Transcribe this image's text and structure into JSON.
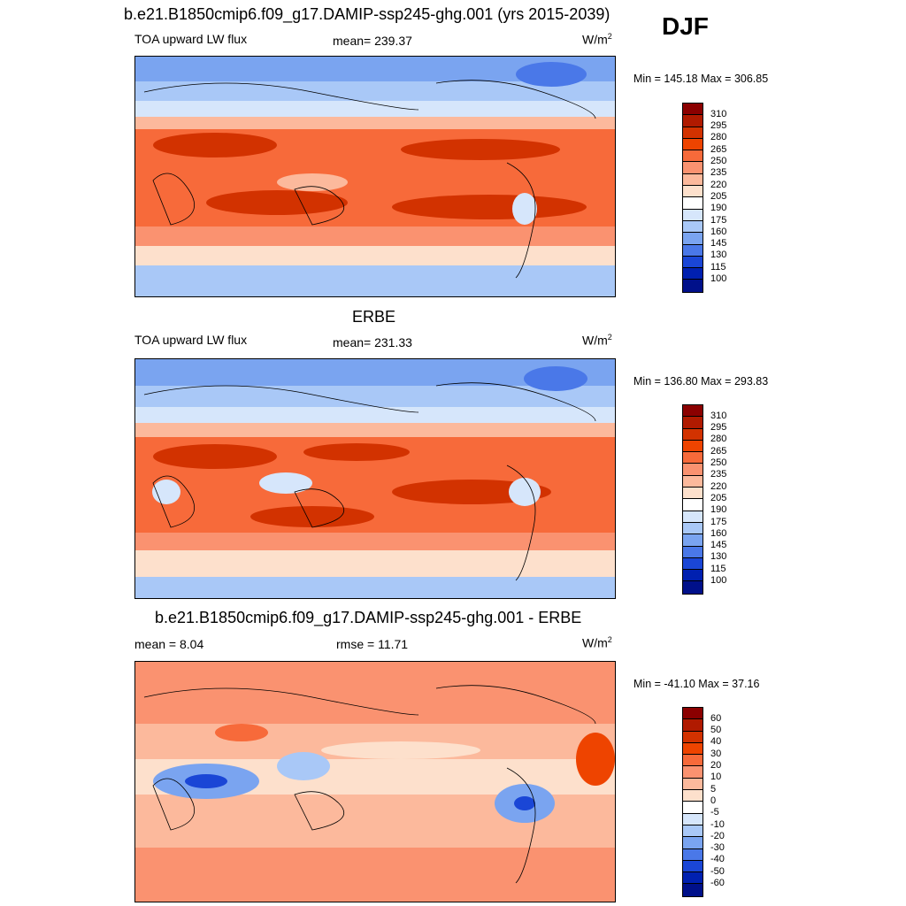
{
  "season": "DJF",
  "panels": [
    {
      "title": "b.e21.B1850cmip6.f09_g17.DAMIP-ssp245-ghg.001 (yrs 2015-2039)",
      "left_label": "TOA upward LW flux",
      "center_label": "mean= 239.37",
      "units": "W/m",
      "units_sup": "2",
      "minmax": "Min = 145.18 Max = 306.85",
      "colorbar": {
        "labels": [
          "310",
          "295",
          "280",
          "265",
          "250",
          "235",
          "220",
          "205",
          "190",
          "175",
          "160",
          "145",
          "130",
          "115",
          "100"
        ],
        "colors": [
          "#8b0000",
          "#b01a00",
          "#d23200",
          "#ee4400",
          "#f76a3a",
          "#fa9270",
          "#fcb99c",
          "#fde0cc",
          "#ffffff",
          "#d6e6fb",
          "#a9c8f7",
          "#7aa4f0",
          "#4a78e8",
          "#1a46d6",
          "#0020b0",
          "#00108a"
        ]
      }
    },
    {
      "title": "ERBE",
      "left_label": "TOA upward LW flux",
      "center_label": "mean= 231.33",
      "units": "W/m",
      "units_sup": "2",
      "minmax": "Min = 136.80 Max = 293.83",
      "colorbar": {
        "labels": [
          "310",
          "295",
          "280",
          "265",
          "250",
          "235",
          "220",
          "205",
          "190",
          "175",
          "160",
          "145",
          "130",
          "115",
          "100"
        ],
        "colors": [
          "#8b0000",
          "#b01a00",
          "#d23200",
          "#ee4400",
          "#f76a3a",
          "#fa9270",
          "#fcb99c",
          "#fde0cc",
          "#ffffff",
          "#d6e6fb",
          "#a9c8f7",
          "#7aa4f0",
          "#4a78e8",
          "#1a46d6",
          "#0020b0",
          "#00108a"
        ]
      }
    },
    {
      "title": "b.e21.B1850cmip6.f09_g17.DAMIP-ssp245-ghg.001 - ERBE",
      "left_label": "mean =   8.04",
      "center_label": "rmse =  11.71",
      "units": "W/m",
      "units_sup": "2",
      "minmax": "Min = -41.10 Max =  37.16",
      "colorbar": {
        "labels": [
          "60",
          "50",
          "40",
          "30",
          "20",
          "10",
          "5",
          "0",
          "-5",
          "-10",
          "-20",
          "-30",
          "-40",
          "-50",
          "-60"
        ],
        "colors": [
          "#8b0000",
          "#b01a00",
          "#d23200",
          "#ee4400",
          "#f76a3a",
          "#fa9270",
          "#fcb99c",
          "#fde0cc",
          "#ffffff",
          "#d6e6fb",
          "#a9c8f7",
          "#7aa4f0",
          "#4a78e8",
          "#1a46d6",
          "#0020b0",
          "#00108a"
        ]
      }
    }
  ]
}
